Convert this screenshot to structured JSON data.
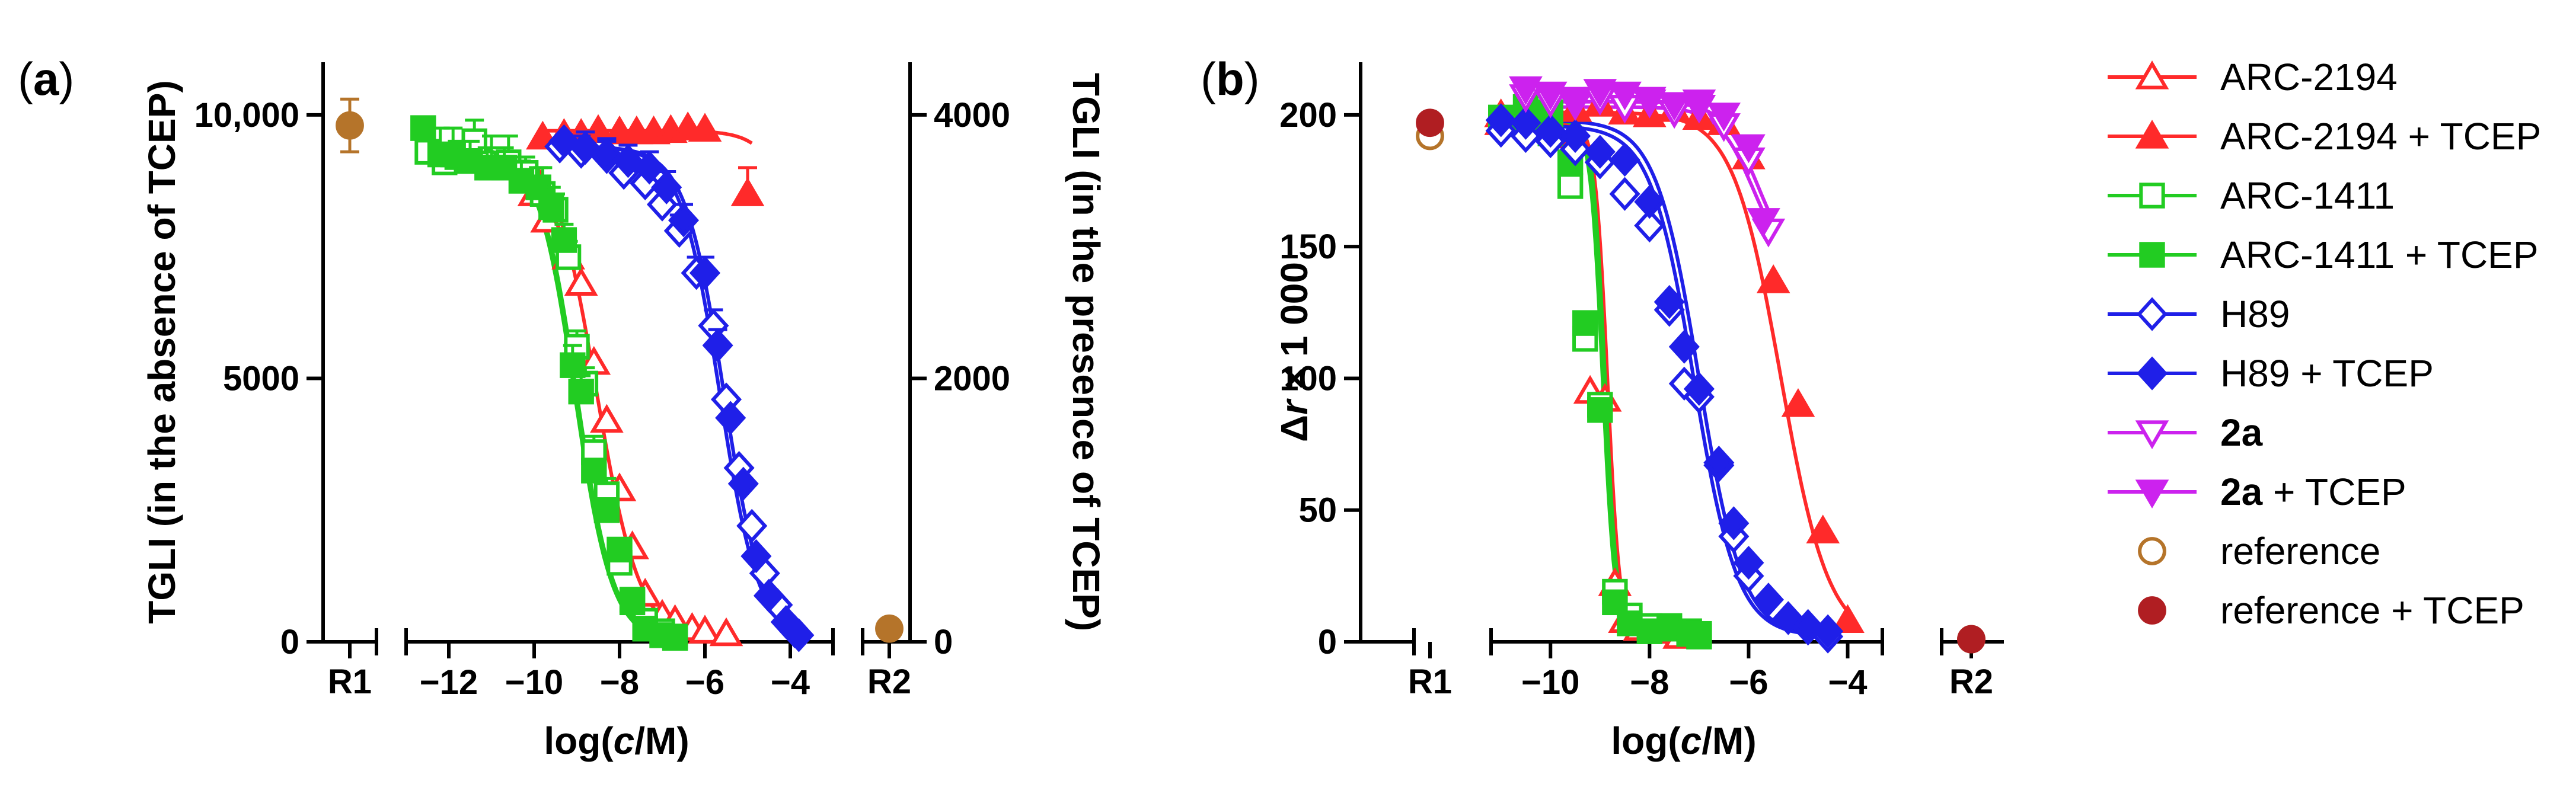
{
  "colors": {
    "ARC-2194": "#ff2a2a",
    "ARC-1411": "#22cc22",
    "H89": "#1f1fe8",
    "2a": "#cc22ee",
    "reference": "#b5742a",
    "reference_tcep": "#b01e22"
  },
  "chart_data": [
    {
      "type": "scatter",
      "panel": "(a)",
      "panel_letter": "a",
      "xlabel_pre": "log(",
      "xlabel_var": "c",
      "xlabel_post": "/M)",
      "ylabel": "TGLI (in the absence of TCEP)",
      "y2label": "TGLI (in the presence of TCEP)",
      "ylim": [
        0,
        11000
      ],
      "y2lim": [
        0,
        4400
      ],
      "xlim": [
        -13,
        -3
      ],
      "xticks": [
        -12,
        -10,
        -8,
        -6,
        -4
      ],
      "xtick_labels": [
        "−12",
        "−10",
        "−8",
        "−6",
        "−4"
      ],
      "yticks": [
        0,
        5000,
        10000
      ],
      "ytick_labels": [
        "0",
        "5000",
        "10,000"
      ],
      "y2ticks": [
        0,
        2000,
        4000
      ],
      "y2tick_labels": [
        "0",
        "2000",
        "4000"
      ],
      "ref_labels": [
        "R1",
        "R2"
      ],
      "reference_points": [
        {
          "at": "R1",
          "axis": "left",
          "value": 9800,
          "err": 500,
          "series": "reference"
        },
        {
          "at": "R2",
          "axis": "right",
          "value": 100,
          "err": 60,
          "series": "reference"
        }
      ],
      "series": [
        {
          "name": "ARC-2194",
          "axis": "left",
          "marker": "triangle-up-open",
          "color": "#ff2a2a",
          "curve": {
            "top": 9600,
            "bottom": 0,
            "logIC50": -8.55,
            "hill": 0.85
          },
          "x": [
            -10,
            -9.7,
            -9.2,
            -8.9,
            -8.6,
            -8.3,
            -8.0,
            -7.7,
            -7.4,
            -7.0,
            -6.7,
            -6.3,
            -6.0,
            -5.5
          ],
          "y": [
            8500,
            8000,
            7300,
            6800,
            5300,
            4200,
            2900,
            1800,
            900,
            500,
            400,
            250,
            200,
            150
          ]
        },
        {
          "name": "ARC-2194 + TCEP",
          "axis": "right",
          "marker": "triangle-up-filled",
          "color": "#ff2a2a",
          "curve": {
            "top": 3880,
            "bottom": 0,
            "logIC50": -3.3,
            "hill": 1.0,
            "xmax": -4.9
          },
          "x": [
            -9.8,
            -9.3,
            -8.9,
            -8.5,
            -8.0,
            -7.6,
            -7.2,
            -6.8,
            -6.4,
            -6.0,
            -5.0
          ],
          "y": [
            3830,
            3850,
            3850,
            3880,
            3870,
            3870,
            3870,
            3880,
            3900,
            3890,
            3400
          ],
          "err": [
            0,
            0,
            0,
            0,
            0,
            0,
            0,
            0,
            0,
            0,
            200
          ]
        },
        {
          "name": "ARC-1411",
          "axis": "left",
          "marker": "square-open",
          "color": "#22cc22",
          "curve": {
            "top": 9400,
            "bottom": 0,
            "logIC50": -9.0,
            "hill": 1.0
          },
          "x": [
            -12.5,
            -12.1,
            -11.8,
            -11.4,
            -11.0,
            -10.6,
            -10.2,
            -9.8,
            -9.5,
            -9.2,
            -9.0,
            -8.8,
            -8.6,
            -8.3,
            -8.0,
            -7.7,
            -7.4,
            -7.0,
            -6.7
          ],
          "y": [
            9300,
            9100,
            9200,
            9500,
            9000,
            9100,
            8900,
            8500,
            8200,
            7300,
            5600,
            4900,
            3600,
            2800,
            1500,
            800,
            400,
            200,
            100
          ],
          "err": [
            0,
            300,
            300,
            400,
            600,
            500,
            300,
            500,
            300,
            300,
            300,
            300,
            300,
            300,
            300,
            0,
            0,
            0,
            0
          ]
        },
        {
          "name": "ARC-1411 + TCEP",
          "axis": "right",
          "marker": "square-filled",
          "color": "#22cc22",
          "curve": {
            "top": 3760,
            "bottom": 0,
            "logIC50": -9.05,
            "hill": 1.0
          },
          "x": [
            -12.6,
            -12.2,
            -11.9,
            -11.5,
            -11.1,
            -10.7,
            -10.3,
            -9.9,
            -9.6,
            -9.3,
            -9.1,
            -8.9,
            -8.6,
            -8.3,
            -8.0,
            -7.7,
            -7.4,
            -7.0,
            -6.7
          ],
          "y": [
            3900,
            3700,
            3700,
            3650,
            3600,
            3600,
            3500,
            3450,
            3300,
            3050,
            2100,
            1900,
            1300,
            1000,
            700,
            300,
            100,
            50,
            30
          ],
          "err": [
            0,
            200,
            200,
            150,
            150,
            150,
            150,
            150,
            150,
            120,
            150,
            120,
            0,
            0,
            0,
            0,
            0,
            0,
            0
          ]
        },
        {
          "name": "H89",
          "axis": "left",
          "marker": "diamond-open",
          "color": "#1f1fe8",
          "curve": {
            "top": 9400,
            "bottom": 0,
            "logIC50": -5.55,
            "hill": 0.95
          },
          "x": [
            -9.4,
            -8.9,
            -8.3,
            -7.9,
            -7.4,
            -7.0,
            -6.6,
            -6.2,
            -5.8,
            -5.5,
            -5.2,
            -4.9,
            -4.6,
            -4.3,
            -3.9
          ],
          "y": [
            9400,
            9300,
            9200,
            8900,
            8700,
            8300,
            7800,
            7000,
            6000,
            4600,
            3300,
            2200,
            1300,
            700,
            200
          ],
          "err": [
            0,
            300,
            300,
            300,
            300,
            300,
            300,
            300,
            300,
            0,
            0,
            0,
            0,
            0,
            0
          ]
        },
        {
          "name": "H89 + TCEP",
          "axis": "right",
          "marker": "diamond-filled",
          "color": "#1f1fe8",
          "curve": {
            "top": 3760,
            "bottom": 0,
            "logIC50": -5.65,
            "hill": 0.95
          },
          "x": [
            -9.3,
            -8.8,
            -8.3,
            -7.8,
            -7.3,
            -6.9,
            -6.5,
            -6.0,
            -5.7,
            -5.4,
            -5.1,
            -4.8,
            -4.5,
            -4.1,
            -3.8
          ],
          "y": [
            3800,
            3750,
            3700,
            3650,
            3600,
            3450,
            3200,
            2800,
            2250,
            1700,
            1200,
            650,
            350,
            150,
            50
          ],
          "err": [
            0,
            120,
            120,
            120,
            120,
            120,
            120,
            120,
            120,
            0,
            0,
            0,
            0,
            0,
            0
          ]
        }
      ]
    },
    {
      "type": "scatter",
      "panel": "(b)",
      "panel_letter": "b",
      "xlabel_pre": "log(",
      "xlabel_var": "c",
      "xlabel_post": "/M)",
      "ylabel_pre": "Δ",
      "ylabel_var": "r",
      "ylabel_post": " × 1 000",
      "ylim": [
        0,
        220
      ],
      "xlim": [
        -11.2,
        -3.3
      ],
      "xticks": [
        -10,
        -8,
        -6,
        -4
      ],
      "xtick_labels": [
        "−10",
        "−8",
        "−6",
        "−4"
      ],
      "yticks": [
        0,
        50,
        100,
        150,
        200
      ],
      "ytick_labels": [
        "0",
        "50",
        "100",
        "150",
        "200"
      ],
      "ref_labels": [
        "R1",
        "R2"
      ],
      "reference_points": [
        {
          "at": "R1",
          "value": 192,
          "series": "reference"
        },
        {
          "at": "R1",
          "value": 197,
          "series": "reference + TCEP"
        },
        {
          "at": "R2",
          "value": 1,
          "series": "reference"
        },
        {
          "at": "R2",
          "value": 1,
          "series": "reference + TCEP"
        }
      ],
      "series": [
        {
          "name": "ARC-2194",
          "marker": "triangle-up-open",
          "color": "#ff2a2a",
          "curve": {
            "top": 197,
            "bottom": 2,
            "logIC50": -8.85,
            "hill": 3.5
          },
          "x": [
            -11,
            -10.5,
            -10,
            -9.5,
            -9.2,
            -8.9,
            -8.7,
            -8.5,
            -8.2,
            -7.8,
            -7.4
          ],
          "y": [
            197,
            198,
            196,
            192,
            95,
            92,
            22,
            8,
            5,
            4,
            2
          ]
        },
        {
          "name": "ARC-2194 + TCEP",
          "marker": "triangle-up-filled",
          "color": "#ff2a2a",
          "curve": {
            "top": 201,
            "bottom": 0,
            "logIC50": -5.35,
            "hill": 0.9
          },
          "x": [
            -11,
            -10.5,
            -10,
            -9.5,
            -9.0,
            -8.5,
            -8.0,
            -7.5,
            -7.0,
            -6.5,
            -6.0,
            -5.5,
            -5.0,
            -4.5,
            -4.0
          ],
          "y": [
            200,
            206,
            203,
            202,
            204,
            201,
            200,
            202,
            199,
            197,
            184,
            137,
            90,
            42,
            8
          ]
        },
        {
          "name": "ARC-1411",
          "marker": "square-open",
          "color": "#22cc22",
          "curve": {
            "top": 198,
            "bottom": 2,
            "logIC50": -8.95,
            "hill": 3.5
          },
          "x": [
            -11,
            -10.5,
            -10,
            -9.6,
            -9.3,
            -9.0,
            -8.7,
            -8.4,
            -8.0,
            -7.6,
            -7.2,
            -7.0
          ],
          "y": [
            198,
            196,
            193,
            173,
            115,
            90,
            19,
            10,
            6,
            5,
            4,
            3
          ]
        },
        {
          "name": "ARC-1411 + TCEP",
          "marker": "square-filled",
          "color": "#22cc22",
          "curve": {
            "top": 199,
            "bottom": 2,
            "logIC50": -8.9,
            "hill": 3.5
          },
          "x": [
            -11,
            -10.5,
            -10,
            -9.6,
            -9.3,
            -9.0,
            -8.7,
            -8.4,
            -8.0,
            -7.6,
            -7.2,
            -7.0
          ],
          "y": [
            199,
            203,
            201,
            182,
            121,
            88,
            15,
            7,
            4,
            6,
            3,
            2
          ]
        },
        {
          "name": "H89",
          "marker": "diamond-open",
          "color": "#1f1fe8",
          "curve": {
            "top": 196,
            "bottom": 2,
            "logIC50": -7.1,
            "hill": 1.0
          },
          "x": [
            -11,
            -10.5,
            -10,
            -9.5,
            -9.0,
            -8.5,
            -8.0,
            -7.6,
            -7.3,
            -7.0,
            -6.6,
            -6.3,
            -6.0,
            -5.6,
            -5.2,
            -4.8,
            -4.4
          ],
          "y": [
            194,
            192,
            190,
            187,
            182,
            170,
            158,
            126,
            98,
            93,
            67,
            40,
            25,
            16,
            9,
            5,
            2
          ]
        },
        {
          "name": "H89 + TCEP",
          "marker": "diamond-filled",
          "color": "#1f1fe8",
          "curve": {
            "top": 198,
            "bottom": 2,
            "logIC50": -7.0,
            "hill": 1.0
          },
          "x": [
            -11,
            -10.5,
            -10,
            -9.5,
            -9.0,
            -8.5,
            -8.0,
            -7.6,
            -7.3,
            -7.0,
            -6.6,
            -6.3,
            -6.0,
            -5.6,
            -5.2,
            -4.8,
            -4.4
          ],
          "y": [
            198,
            197,
            194,
            192,
            186,
            183,
            167,
            129,
            112,
            96,
            68,
            45,
            30,
            16,
            9,
            6,
            4
          ]
        },
        {
          "name": "2a",
          "marker": "triangle-down-open",
          "color": "#cc22ee",
          "curve": {
            "top": 203,
            "bottom": 140,
            "logIC50": -5.9,
            "hill": 1.2,
            "xmax": -5.6
          },
          "x": [
            -10.5,
            -10,
            -9.5,
            -9.0,
            -8.5,
            -8.0,
            -7.5,
            -7.0,
            -6.5,
            -6.0,
            -5.6
          ],
          "y": [
            207,
            205,
            204,
            206,
            203,
            205,
            201,
            203,
            196,
            183,
            156
          ]
        },
        {
          "name": "2a + TCEP",
          "marker": "triangle-down-filled",
          "color": "#cc22ee",
          "curve": {
            "top": 205,
            "bottom": 140,
            "logIC50": -5.8,
            "hill": 1.2,
            "xmax": -5.6
          },
          "x": [
            -10.5,
            -10,
            -9.5,
            -9.0,
            -8.5,
            -8.0,
            -7.5,
            -7.0,
            -6.5,
            -6.0,
            -5.7
          ],
          "y": [
            210,
            208,
            206,
            209,
            208,
            206,
            204,
            205,
            200,
            188,
            160
          ]
        }
      ]
    }
  ],
  "legend": {
    "position": "right",
    "items": [
      {
        "bold": "",
        "label": "ARC-2194",
        "marker": "triangle-up-open",
        "color": "#ff2a2a",
        "line": true
      },
      {
        "bold": "",
        "label": "ARC-2194 + TCEP",
        "marker": "triangle-up-filled",
        "color": "#ff2a2a",
        "line": true
      },
      {
        "bold": "",
        "label": "ARC-1411",
        "marker": "square-open",
        "color": "#22cc22",
        "line": true
      },
      {
        "bold": "",
        "label": "ARC-1411 + TCEP",
        "marker": "square-filled",
        "color": "#22cc22",
        "line": true
      },
      {
        "bold": "",
        "label": "H89",
        "marker": "diamond-open",
        "color": "#1f1fe8",
        "line": true
      },
      {
        "bold": "",
        "label": "H89 + TCEP",
        "marker": "diamond-filled",
        "color": "#1f1fe8",
        "line": true
      },
      {
        "bold": "2a",
        "label": "",
        "marker": "triangle-down-open",
        "color": "#cc22ee",
        "line": true
      },
      {
        "bold": "2a",
        "label": " + TCEP",
        "marker": "triangle-down-filled",
        "color": "#cc22ee",
        "line": true
      },
      {
        "bold": "",
        "label": "reference",
        "marker": "circle-open",
        "color": "#b5742a",
        "line": false
      },
      {
        "bold": "",
        "label": "reference + TCEP",
        "marker": "circle-filled",
        "color": "#b01e22",
        "line": false
      }
    ]
  }
}
